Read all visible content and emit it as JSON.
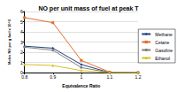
{
  "chart_data": {
    "type": "line",
    "title": "NO per unit mass of fuel at peak T",
    "x_label": "Equivalence Ratio",
    "y_label": "Moles NO per g fuel x 10^3",
    "x": [
      0.8,
      0.9,
      1,
      1.1,
      1.2
    ],
    "series": [
      {
        "name": "Methane",
        "color": "#1f3f7f",
        "marker": "diamond",
        "values": [
          2.6,
          2.4,
          0.8,
          0,
          0
        ]
      },
      {
        "name": "Cetane",
        "color": "#e07030",
        "marker": "square",
        "values": [
          5.4,
          4.9,
          1.2,
          0.05,
          0
        ]
      },
      {
        "name": "Gasoline",
        "color": "#808080",
        "marker": "circle",
        "values": [
          2.5,
          2.2,
          0.5,
          0,
          0
        ]
      },
      {
        "name": "Ethanol",
        "color": "#d4c020",
        "marker": "triangle",
        "values": [
          0.8,
          0.7,
          0.2,
          0,
          0
        ]
      }
    ],
    "xlim": [
      0.8,
      1.2
    ],
    "xticks": [
      0.8,
      0.9,
      1,
      1.1,
      1.2
    ],
    "ylim": [
      0,
      6
    ],
    "yticks": [
      0,
      1,
      2,
      3,
      4,
      5,
      6
    ],
    "grid": true,
    "legend": "right"
  }
}
